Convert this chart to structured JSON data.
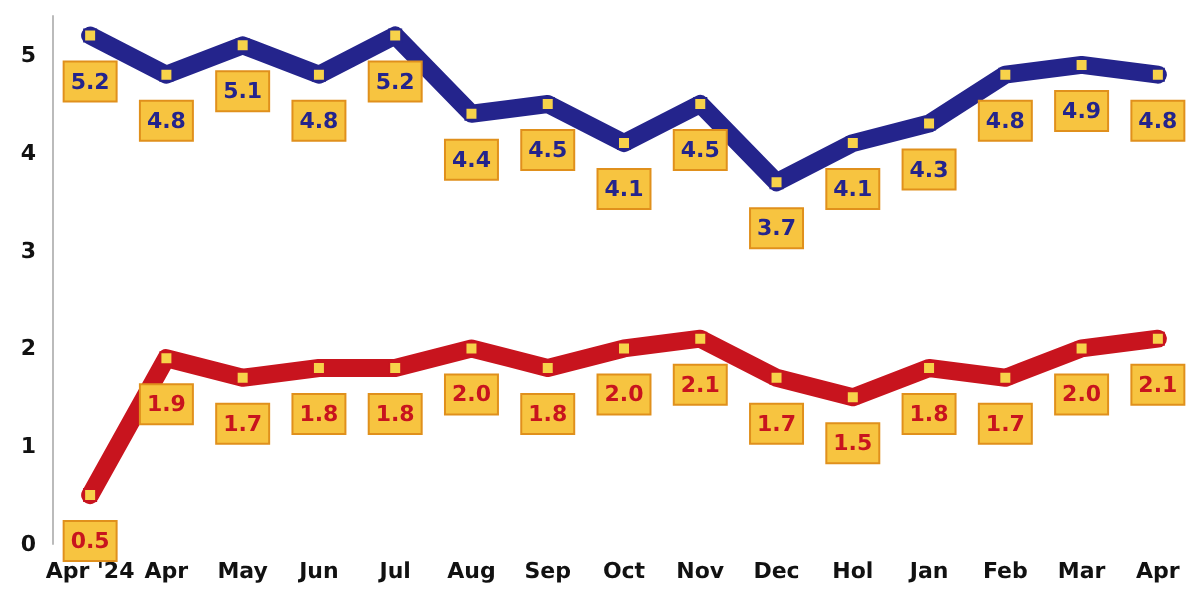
{
  "chart_data": {
    "type": "line",
    "categories": [
      "Apr '24",
      "Apr",
      "May",
      "Jun",
      "Jul",
      "Aug",
      "Sep",
      "Oct",
      "Nov",
      "Dec",
      "Hol",
      "Jan",
      "Feb",
      "Mar",
      "Apr"
    ],
    "series": [
      {
        "color": "#24248c",
        "values": [
          5.2,
          4.8,
          5.1,
          4.8,
          5.2,
          4.4,
          4.5,
          4.1,
          4.5,
          3.7,
          4.1,
          4.3,
          4.8,
          4.9,
          4.8
        ],
        "value_labels": [
          "5.2",
          "4.8",
          "5.1",
          "4.8",
          "5.2",
          "4.4",
          "4.5",
          "4.1",
          "4.5",
          "3.7",
          "4.1",
          "4.3",
          "4.8",
          "4.9",
          "4.8"
        ]
      },
      {
        "color": "#c8141e",
        "values": [
          0.5,
          1.9,
          1.7,
          1.8,
          1.8,
          2.0,
          1.8,
          2.0,
          2.1,
          1.7,
          1.5,
          1.8,
          1.7,
          2.0,
          2.1
        ],
        "value_labels": [
          "0.5",
          "1.9",
          "1.7",
          "1.8",
          "1.8",
          "2.0",
          "1.8",
          "2.0",
          "2.1",
          "1.7",
          "1.5",
          "1.8",
          "1.7",
          "2.0",
          "2.1"
        ]
      }
    ],
    "ylim": [
      0,
      5.4
    ],
    "yticks": [
      0,
      1,
      2,
      3,
      4,
      5
    ],
    "grid": false,
    "marker": "square",
    "line_style": "solid"
  }
}
